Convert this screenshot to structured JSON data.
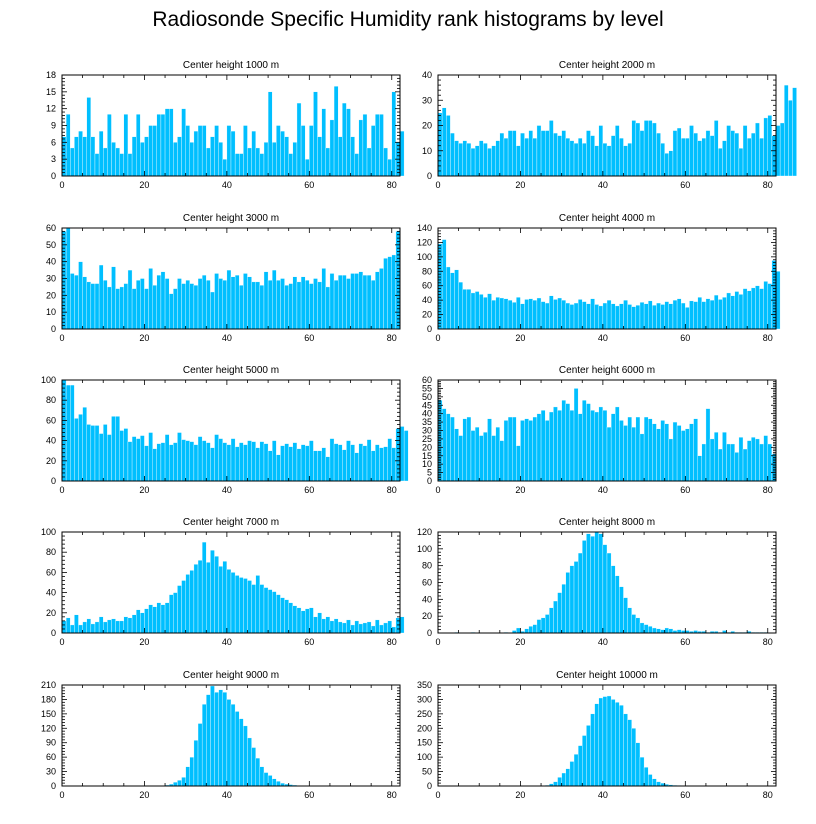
{
  "title": "Radiosonde Specific Humidity rank histograms by level",
  "colors": {
    "bar": "#00bfff",
    "bar_edge": "#ffffff",
    "axis": "#000000"
  },
  "chart_data": [
    {
      "type": "bar",
      "title": "Center height 1000 m",
      "xlim": [
        0,
        82
      ],
      "ylim": [
        0,
        18
      ],
      "xticks": [
        0,
        20,
        40,
        60,
        80
      ],
      "yticks": [
        0,
        3,
        6,
        9,
        12,
        15,
        18
      ],
      "values": [
        7,
        11,
        5,
        7,
        8,
        7,
        14,
        7,
        4,
        8,
        5,
        11,
        6,
        5,
        4,
        11,
        4,
        7,
        11,
        6,
        7,
        9,
        9,
        11,
        11,
        12,
        12,
        6,
        7,
        12,
        9,
        6,
        8,
        9,
        9,
        5,
        7,
        9,
        6,
        3,
        9,
        8,
        4,
        4,
        9,
        5,
        8,
        5,
        4,
        6,
        15,
        6,
        9,
        8,
        7,
        4,
        6,
        13,
        9,
        3,
        9,
        15,
        7,
        12,
        5,
        10,
        16,
        7,
        13,
        12,
        7,
        4,
        10,
        11,
        5,
        9,
        11,
        11,
        5,
        3,
        15,
        6,
        8
      ]
    },
    {
      "type": "bar",
      "title": "Center height 2000 m",
      "xlim": [
        0,
        82
      ],
      "ylim": [
        0,
        40
      ],
      "xticks": [
        0,
        20,
        40,
        60,
        80
      ],
      "yticks": [
        0,
        10,
        20,
        30,
        40
      ],
      "values": [
        25,
        27,
        24,
        17,
        14,
        13,
        14,
        13,
        11,
        12,
        14,
        13,
        11,
        12,
        14,
        17,
        15,
        18,
        18,
        12,
        17,
        15,
        18,
        15,
        20,
        18,
        18,
        22,
        17,
        16,
        18,
        15,
        14,
        13,
        15,
        13,
        18,
        16,
        12,
        20,
        13,
        12,
        16,
        20,
        15,
        12,
        13,
        22,
        21,
        18,
        22,
        22,
        21,
        17,
        13,
        9,
        10,
        18,
        19,
        15,
        15,
        20,
        17,
        14,
        15,
        18,
        16,
        22,
        11,
        14,
        20,
        18,
        17,
        11,
        20,
        15,
        17,
        21,
        15,
        23,
        24,
        16,
        20,
        21,
        36,
        30,
        35
      ]
    },
    {
      "type": "bar",
      "title": "Center height 3000 m",
      "xlim": [
        0,
        82
      ],
      "ylim": [
        0,
        60
      ],
      "xticks": [
        0,
        20,
        40,
        60,
        80
      ],
      "yticks": [
        0,
        10,
        20,
        30,
        40,
        50,
        60
      ],
      "values": [
        58,
        60,
        33,
        32,
        40,
        31,
        28,
        27,
        27,
        38,
        29,
        25,
        37,
        24,
        25,
        27,
        35,
        24,
        29,
        30,
        24,
        36,
        26,
        32,
        34,
        30,
        21,
        24,
        30,
        27,
        29,
        27,
        26,
        30,
        32,
        29,
        22,
        33,
        30,
        29,
        35,
        31,
        32,
        26,
        33,
        31,
        28,
        28,
        26,
        34,
        29,
        35,
        29,
        30,
        26,
        27,
        31,
        28,
        31,
        29,
        27,
        30,
        28,
        36,
        25,
        33,
        29,
        32,
        32,
        30,
        33,
        33,
        34,
        32,
        32,
        29,
        34,
        36,
        42,
        43,
        44,
        58
      ]
    },
    {
      "type": "bar",
      "title": "Center height 4000 m",
      "xlim": [
        0,
        82
      ],
      "ylim": [
        0,
        140
      ],
      "xticks": [
        0,
        20,
        40,
        60,
        80
      ],
      "yticks": [
        0,
        20,
        40,
        60,
        80,
        100,
        120,
        140
      ],
      "values": [
        118,
        124,
        86,
        78,
        82,
        65,
        55,
        55,
        50,
        52,
        48,
        44,
        49,
        40,
        44,
        43,
        42,
        40,
        37,
        44,
        35,
        41,
        42,
        40,
        43,
        38,
        36,
        46,
        41,
        43,
        40,
        36,
        34,
        36,
        41,
        38,
        35,
        42,
        34,
        32,
        36,
        40,
        35,
        32,
        35,
        40,
        34,
        31,
        33,
        37,
        35,
        39,
        33,
        36,
        34,
        38,
        35,
        40,
        42,
        36,
        30,
        39,
        38,
        44,
        38,
        42,
        40,
        47,
        41,
        44,
        50,
        46,
        52,
        48,
        56,
        53,
        57,
        60,
        56,
        66,
        63,
        95,
        80
      ]
    },
    {
      "type": "bar",
      "title": "Center height 5000 m",
      "xlim": [
        0,
        82
      ],
      "ylim": [
        0,
        100
      ],
      "xticks": [
        0,
        20,
        40,
        60,
        80
      ],
      "yticks": [
        0,
        20,
        40,
        60,
        80,
        100
      ],
      "values": [
        100,
        95,
        95,
        62,
        66,
        73,
        56,
        55,
        55,
        47,
        56,
        46,
        64,
        64,
        50,
        52,
        39,
        44,
        42,
        45,
        35,
        48,
        32,
        37,
        38,
        46,
        36,
        38,
        48,
        41,
        40,
        39,
        36,
        44,
        40,
        38,
        33,
        46,
        42,
        38,
        36,
        42,
        34,
        38,
        36,
        40,
        39,
        33,
        39,
        37,
        30,
        40,
        26,
        35,
        37,
        34,
        38,
        32,
        36,
        35,
        40,
        30,
        30,
        33,
        24,
        42,
        37,
        36,
        31,
        40,
        36,
        28,
        37,
        35,
        41,
        30,
        36,
        33,
        34,
        42,
        33,
        52,
        54,
        50
      ]
    },
    {
      "type": "bar",
      "title": "Center height 6000 m",
      "xlim": [
        0,
        82
      ],
      "ylim": [
        0,
        60
      ],
      "xticks": [
        0,
        20,
        40,
        60,
        80
      ],
      "yticks": [
        0,
        5,
        10,
        15,
        20,
        25,
        30,
        35,
        40,
        45,
        50,
        55,
        60
      ],
      "values": [
        48,
        43,
        40,
        38,
        31,
        27,
        37,
        38,
        30,
        32,
        27,
        29,
        37,
        27,
        32,
        24,
        36,
        38,
        38,
        21,
        36,
        37,
        36,
        38,
        40,
        42,
        36,
        41,
        44,
        42,
        48,
        46,
        42,
        55,
        40,
        48,
        46,
        42,
        41,
        44,
        42,
        32,
        40,
        44,
        36,
        33,
        38,
        32,
        38,
        28,
        38,
        37,
        34,
        31,
        36,
        34,
        25,
        35,
        33,
        30,
        31,
        34,
        37,
        15,
        22,
        43,
        25,
        29,
        19,
        29,
        22,
        22,
        17,
        26,
        19,
        24,
        26,
        25,
        22,
        27,
        22,
        16
      ]
    },
    {
      "type": "bar",
      "title": "Center height 7000 m",
      "xlim": [
        0,
        82
      ],
      "ylim": [
        0,
        100
      ],
      "xticks": [
        0,
        20,
        40,
        60,
        80
      ],
      "yticks": [
        0,
        20,
        40,
        60,
        80,
        100
      ],
      "values": [
        12,
        15,
        8,
        18,
        8,
        11,
        14,
        9,
        11,
        16,
        11,
        13,
        14,
        12,
        12,
        16,
        15,
        18,
        23,
        20,
        24,
        28,
        26,
        30,
        28,
        30,
        38,
        40,
        47,
        52,
        58,
        62,
        68,
        72,
        90,
        70,
        82,
        76,
        66,
        71,
        63,
        60,
        57,
        55,
        54,
        52,
        48,
        57,
        48,
        45,
        43,
        41,
        38,
        35,
        33,
        30,
        27,
        25,
        22,
        24,
        25,
        16,
        20,
        14,
        16,
        12,
        14,
        11,
        10,
        13,
        8,
        12,
        9,
        10,
        11,
        7,
        13,
        8,
        10,
        12,
        6,
        15,
        16
      ]
    },
    {
      "type": "bar",
      "title": "Center height 8000 m",
      "xlim": [
        0,
        82
      ],
      "ylim": [
        0,
        120
      ],
      "xticks": [
        0,
        20,
        40,
        60,
        80
      ],
      "yticks": [
        0,
        20,
        40,
        60,
        80,
        100,
        120
      ],
      "values": [
        0,
        0,
        0,
        0,
        1,
        0,
        0,
        0,
        1,
        0,
        0,
        0,
        0,
        0,
        0,
        0,
        1,
        0,
        3,
        6,
        2,
        5,
        8,
        10,
        16,
        18,
        22,
        30,
        38,
        48,
        58,
        72,
        80,
        85,
        95,
        110,
        118,
        115,
        120,
        118,
        105,
        95,
        80,
        68,
        55,
        42,
        30,
        22,
        18,
        12,
        10,
        8,
        6,
        5,
        4,
        6,
        5,
        3,
        4,
        3,
        3,
        2,
        3,
        2,
        2,
        1,
        2,
        2,
        1,
        3,
        1,
        2,
        1,
        1,
        1,
        2,
        1,
        1,
        1,
        1,
        0,
        0,
        0
      ]
    },
    {
      "type": "bar",
      "title": "Center height 9000 m",
      "xlim": [
        0,
        82
      ],
      "ylim": [
        0,
        210
      ],
      "xticks": [
        0,
        20,
        40,
        60,
        80
      ],
      "yticks": [
        0,
        30,
        60,
        90,
        120,
        150,
        180,
        210
      ],
      "values": [
        0,
        0,
        0,
        0,
        0,
        0,
        0,
        0,
        0,
        0,
        0,
        0,
        0,
        0,
        0,
        0,
        0,
        0,
        0,
        0,
        0,
        0,
        0,
        0,
        1,
        2,
        4,
        8,
        12,
        18,
        40,
        60,
        95,
        130,
        170,
        190,
        208,
        195,
        200,
        195,
        180,
        170,
        155,
        140,
        125,
        100,
        80,
        58,
        40,
        28,
        22,
        15,
        10,
        6,
        4,
        3,
        2,
        1,
        1,
        1,
        0,
        0,
        0,
        0,
        0,
        0,
        0,
        0,
        0,
        0,
        0,
        0,
        0,
        0,
        0,
        0,
        0,
        0,
        0,
        0,
        0,
        0,
        0
      ]
    },
    {
      "type": "bar",
      "title": "Center height 10000 m",
      "xlim": [
        0,
        82
      ],
      "ylim": [
        0,
        350
      ],
      "xticks": [
        0,
        20,
        40,
        60,
        80
      ],
      "yticks": [
        0,
        50,
        100,
        150,
        200,
        250,
        300,
        350
      ],
      "values": [
        0,
        0,
        0,
        0,
        0,
        0,
        0,
        0,
        0,
        0,
        0,
        0,
        0,
        0,
        0,
        0,
        0,
        0,
        0,
        0,
        0,
        0,
        0,
        0,
        0,
        1,
        3,
        8,
        15,
        30,
        45,
        60,
        85,
        110,
        140,
        175,
        210,
        250,
        285,
        305,
        310,
        312,
        300,
        290,
        280,
        250,
        230,
        200,
        150,
        100,
        65,
        40,
        25,
        15,
        10,
        6,
        4,
        3,
        2,
        1,
        1,
        1,
        0,
        0,
        0,
        0,
        0,
        0,
        0,
        0,
        0,
        0,
        0,
        0,
        0,
        0,
        0,
        0,
        0,
        0,
        0,
        0,
        0
      ]
    }
  ]
}
